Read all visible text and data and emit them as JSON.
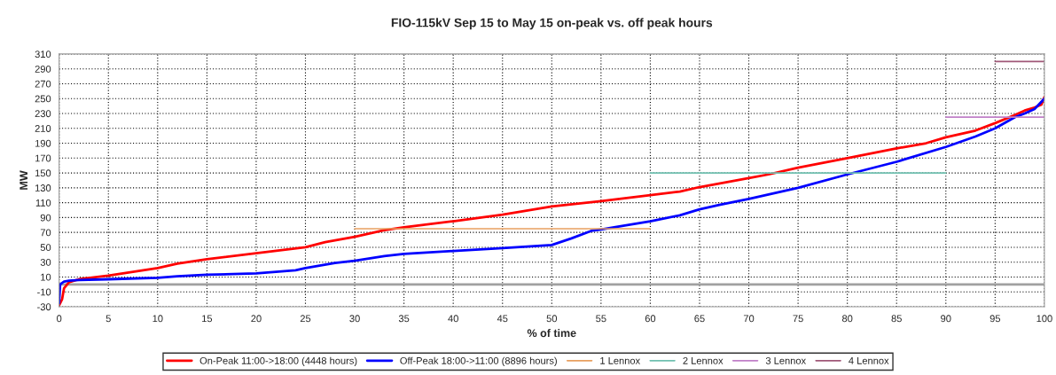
{
  "chart_data": {
    "type": "line",
    "title": "FIO-115kV Sep 15 to May 15 on-peak vs. off peak hours",
    "xlabel": "% of time",
    "ylabel": "MW",
    "series": [
      {
        "name": "On-Peak 11:00->18:00 (4448 hours)",
        "color": "#ff0000",
        "x": [
          0,
          0.3,
          0.5,
          1,
          2,
          5,
          10,
          12,
          15,
          20,
          25,
          27,
          30,
          33,
          35,
          40,
          45,
          50,
          55,
          60,
          63,
          65,
          70,
          72,
          75,
          80,
          85,
          88,
          90,
          93,
          95,
          97,
          98,
          99,
          99.7,
          100
        ],
        "values": [
          -28,
          -20,
          -5,
          3,
          7,
          12,
          22,
          28,
          34,
          42,
          50,
          57,
          64,
          73,
          77,
          85,
          94,
          105,
          112,
          120,
          125,
          131,
          143,
          148,
          157,
          170,
          183,
          190,
          198,
          207,
          217,
          228,
          234,
          238,
          242,
          252
        ]
      },
      {
        "name": "Off-Peak 18:00->11:00 (8896 hours)",
        "color": "#0000ff",
        "x": [
          0,
          0.1,
          0.5,
          1,
          2,
          5,
          10,
          12,
          15,
          20,
          24,
          25,
          28,
          30,
          33,
          35,
          40,
          45,
          50,
          52,
          54,
          55,
          60,
          63,
          65,
          67,
          70,
          75,
          80,
          85,
          90,
          93,
          95,
          97,
          98,
          99,
          100
        ],
        "values": [
          -25,
          0,
          4,
          5,
          6,
          7,
          9,
          11,
          13,
          15,
          19,
          22,
          29,
          32,
          38,
          41,
          45,
          49,
          53,
          62,
          72,
          74,
          85,
          93,
          101,
          107,
          115,
          130,
          148,
          165,
          185,
          199,
          210,
          225,
          230,
          236,
          250
        ]
      },
      {
        "name": "1 Lennox",
        "color": "#e8a060",
        "x": [
          30,
          60
        ],
        "values": [
          75,
          75
        ]
      },
      {
        "name": "2 Lennox",
        "color": "#70c0b0",
        "x": [
          60,
          90
        ],
        "values": [
          150,
          150
        ]
      },
      {
        "name": "3 Lennox",
        "color": "#c080c8",
        "x": [
          90,
          100
        ],
        "values": [
          225,
          225
        ]
      },
      {
        "name": "4 Lennox",
        "color": "#a05878",
        "x": [
          95,
          100
        ],
        "values": [
          300,
          300
        ]
      }
    ],
    "ref_lines": [
      {
        "axis": "y",
        "value": 0,
        "color": "#a0a0a0"
      }
    ],
    "xlim": [
      0,
      100
    ],
    "xticks": [
      0,
      5,
      10,
      15,
      20,
      25,
      30,
      35,
      40,
      45,
      50,
      55,
      60,
      65,
      70,
      75,
      80,
      85,
      90,
      95,
      100
    ],
    "ylim": [
      -30,
      310
    ],
    "yticks": [
      -30,
      -10,
      10,
      30,
      50,
      70,
      90,
      110,
      130,
      150,
      170,
      190,
      210,
      230,
      250,
      270,
      290,
      310
    ],
    "grid": true,
    "legend": "bottom",
    "line_style": "solid",
    "marker": "none"
  }
}
